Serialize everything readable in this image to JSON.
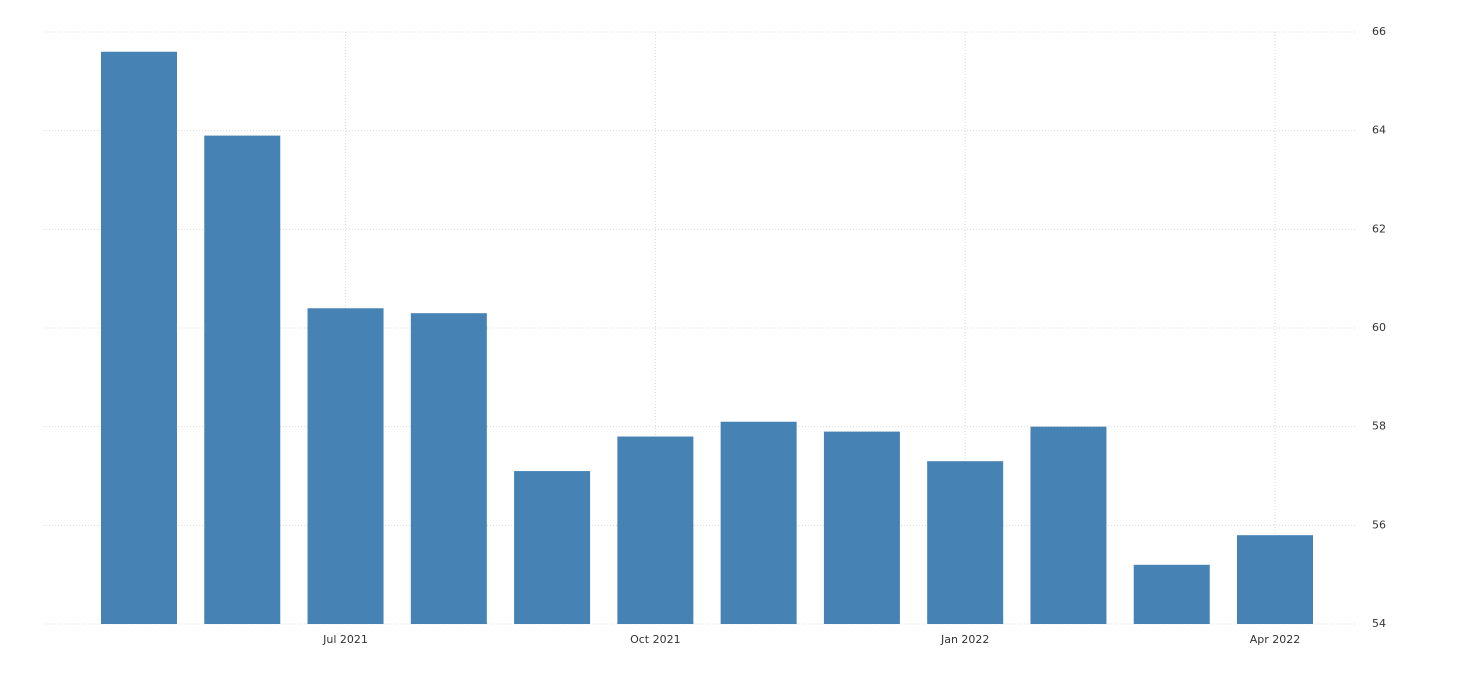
{
  "chart_data": {
    "type": "bar",
    "categories": [
      null,
      null,
      "Jul 2021",
      null,
      null,
      "Oct 2021",
      null,
      null,
      "Jan 2022",
      null,
      null,
      "Apr 2022"
    ],
    "values": [
      65.6,
      63.9,
      60.4,
      60.3,
      57.1,
      57.8,
      58.1,
      57.9,
      57.3,
      58.0,
      55.2,
      55.8
    ],
    "color": "#4682b4",
    "ylim": [
      54,
      66
    ],
    "yticks": [
      54,
      56,
      58,
      60,
      62,
      64,
      66
    ],
    "grid": true,
    "y_axis_side": "right"
  }
}
